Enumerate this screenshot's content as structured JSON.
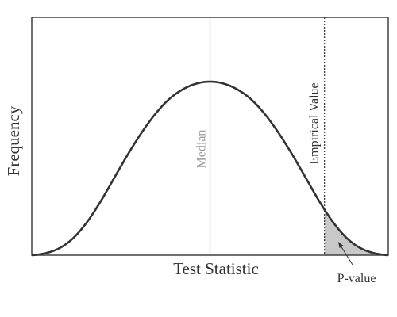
{
  "chart_data": {
    "type": "line",
    "title": "",
    "xlabel": "Test Statistic",
    "ylabel": "Frequency",
    "grid": false,
    "legend": "none",
    "xlim": [
      -2.6,
      2.6
    ],
    "ylim": [
      0,
      1.0
    ],
    "series": [
      {
        "x": [
          -2.6,
          -2.4,
          -2.2,
          -2.0,
          -1.8,
          -1.6,
          -1.4,
          -1.2,
          -1.0,
          -0.8,
          -0.6,
          -0.4,
          -0.2,
          0.0,
          0.2,
          0.4,
          0.6,
          0.8,
          1.0,
          1.2,
          1.4,
          1.6,
          1.8,
          2.0,
          2.2,
          2.4,
          2.6
        ],
        "values": [
          0.0,
          0.01,
          0.035,
          0.085,
          0.165,
          0.27,
          0.39,
          0.51,
          0.62,
          0.715,
          0.79,
          0.84,
          0.87,
          0.88,
          0.87,
          0.84,
          0.79,
          0.715,
          0.62,
          0.51,
          0.39,
          0.27,
          0.165,
          0.085,
          0.035,
          0.01,
          0.0
        ]
      }
    ],
    "reference_lines": [
      {
        "label": "Median",
        "x": 0.0,
        "style": "solid",
        "color": "#a6a6a6"
      },
      {
        "label": "Empirical Value",
        "x": 1.67,
        "style": "dotted",
        "color": "#222222"
      }
    ],
    "shaded_region": {
      "label": "P-value",
      "x_from": 1.67,
      "x_to": 2.6,
      "color": "#c8c8c8"
    },
    "colors": {
      "curve": "#333333",
      "frame": "#333333",
      "median_line": "#a6a6a6",
      "median_text": "#9a9a9a",
      "text": "#333333"
    }
  }
}
